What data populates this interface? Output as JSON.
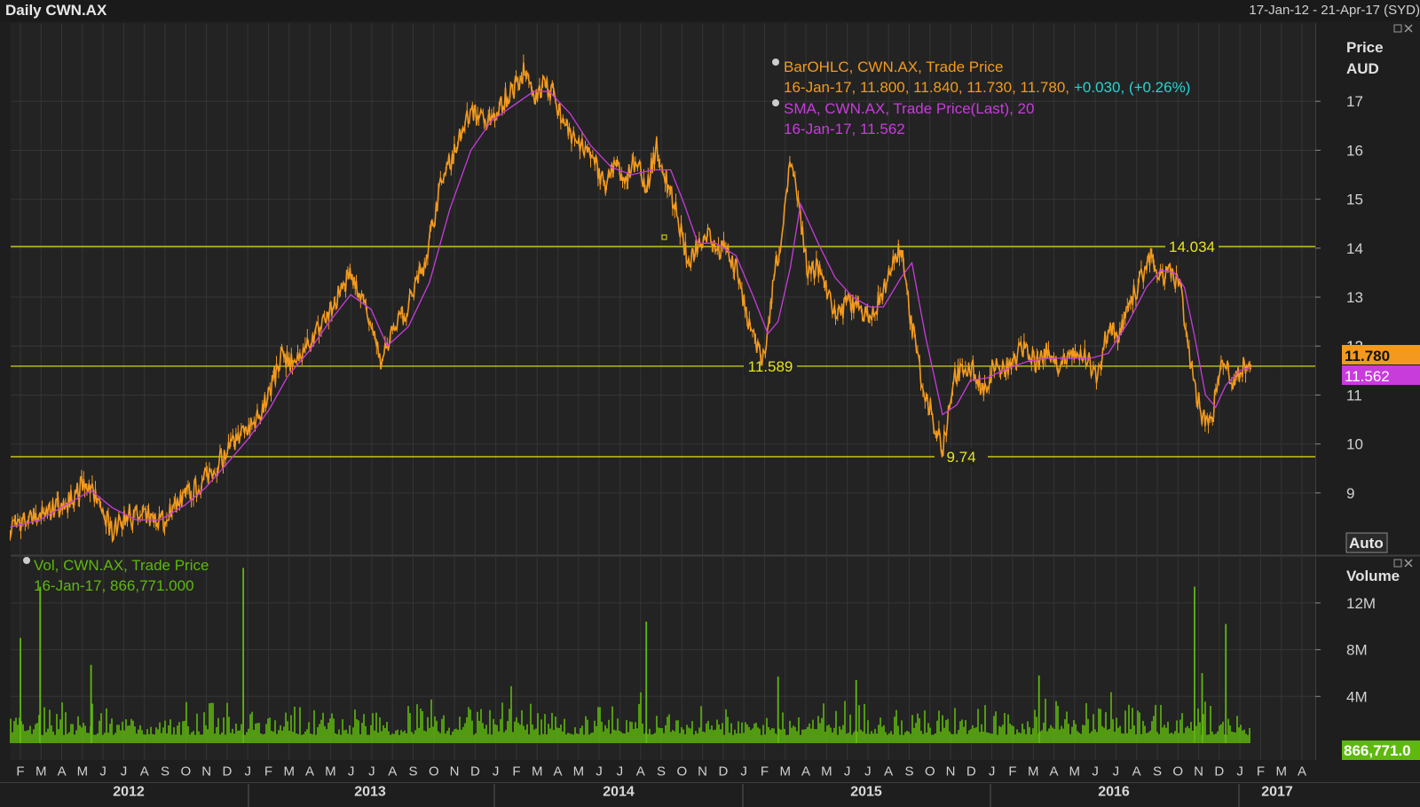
{
  "header": {
    "title": "Daily CWN.AX",
    "date_range": "17-Jan-12 - 21-Apr-17 (SYD)"
  },
  "colors": {
    "background": "#232323",
    "grid": "#353535",
    "price_bars": "#f39a1e",
    "sma": "#c83cdc",
    "volume": "#5fb80e",
    "hlines": "#e6e61a",
    "change_text": "#27d3d3"
  },
  "legend": {
    "price_line1": "BarOHLC, CWN.AX, Trade Price",
    "price_line2": "16-Jan-17, 11.800, 11.840, 11.730, 11.780,",
    "price_change": "+0.030, (+0.26%)",
    "sma_line1": "SMA, CWN.AX, Trade Price(Last),  20",
    "sma_line2": "16-Jan-17, 11.562",
    "vol_line1": "Vol, CWN.AX, Trade Price",
    "vol_line2": "16-Jan-17, 866,771.000"
  },
  "price_axis": {
    "title1": "Price",
    "title2": "AUD",
    "auto_label": "Auto",
    "last_price_label": "11.780",
    "sma_label": "11.562"
  },
  "volume_axis": {
    "title": "Volume",
    "last_volume_label": "866,771.0"
  },
  "chart_data": {
    "type": "line",
    "title": "Daily CWN.AX",
    "x_range": [
      "2012-01-17",
      "2017-04-21"
    ],
    "price_axis": {
      "ylim": [
        8,
        17.8
      ],
      "ticks": [
        "9",
        "10",
        "11",
        "12",
        "13",
        "14",
        "15",
        "16",
        "17"
      ]
    },
    "volume_axis": {
      "ylim": [
        0,
        15000000
      ],
      "tick_values": [
        4000000,
        8000000,
        12000000
      ],
      "tick_labels": [
        "4M",
        "8M",
        "12M"
      ]
    },
    "horizontal_lines": [
      {
        "value": 14.034,
        "label": "14.034"
      },
      {
        "value": 11.589,
        "label": "11.589"
      },
      {
        "value": 9.74,
        "label": "9.74"
      }
    ],
    "month_labels": [
      "F",
      "M",
      "A",
      "M",
      "J",
      "J",
      "A",
      "S",
      "O",
      "N",
      "D",
      "J",
      "F",
      "M",
      "A",
      "M",
      "J",
      "J",
      "A",
      "S",
      "O",
      "N",
      "D",
      "J",
      "F",
      "M",
      "A",
      "M",
      "J",
      "J",
      "A",
      "S",
      "O",
      "N",
      "D",
      "J",
      "F",
      "M",
      "A",
      "M",
      "J",
      "J",
      "A",
      "S",
      "O",
      "N",
      "D",
      "J",
      "F",
      "M",
      "A",
      "M",
      "J",
      "J",
      "A",
      "S",
      "O",
      "N",
      "D",
      "J",
      "F",
      "M",
      "A"
    ],
    "year_labels": [
      "2012",
      "2013",
      "2014",
      "2015",
      "2016",
      "2017"
    ],
    "series": [
      {
        "name": "BarOHLC, CWN.AX, Trade Price",
        "points": [
          [
            "2012-01-17",
            8.3
          ],
          [
            "2012-02-20",
            8.5
          ],
          [
            "2012-03-20",
            8.65
          ],
          [
            "2012-04-15",
            8.85
          ],
          [
            "2012-05-05",
            9.2
          ],
          [
            "2012-05-25",
            8.9
          ],
          [
            "2012-06-15",
            8.2
          ],
          [
            "2012-07-10",
            8.55
          ],
          [
            "2012-08-05",
            8.45
          ],
          [
            "2012-08-25",
            8.4
          ],
          [
            "2012-09-20",
            8.85
          ],
          [
            "2012-10-20",
            9.15
          ],
          [
            "2012-11-20",
            9.65
          ],
          [
            "2012-12-20",
            10.15
          ],
          [
            "2013-01-10",
            10.4
          ],
          [
            "2013-02-01",
            11.05
          ],
          [
            "2013-02-20",
            11.8
          ],
          [
            "2013-03-10",
            11.65
          ],
          [
            "2013-04-10",
            12.25
          ],
          [
            "2013-05-10",
            12.9
          ],
          [
            "2013-06-01",
            13.55
          ],
          [
            "2013-06-15",
            13.0
          ],
          [
            "2013-07-01",
            12.35
          ],
          [
            "2013-07-15",
            11.7
          ],
          [
            "2013-08-05",
            12.4
          ],
          [
            "2013-08-25",
            12.8
          ],
          [
            "2013-09-20",
            13.8
          ],
          [
            "2013-10-10",
            15.2
          ],
          [
            "2013-11-01",
            16.0
          ],
          [
            "2013-11-25",
            16.8
          ],
          [
            "2013-12-20",
            16.5
          ],
          [
            "2014-01-10",
            17.0
          ],
          [
            "2014-01-25",
            17.2
          ],
          [
            "2014-02-10",
            17.6
          ],
          [
            "2014-02-25",
            17.1
          ],
          [
            "2014-03-10",
            17.3
          ],
          [
            "2014-03-25",
            17.2
          ],
          [
            "2014-04-10",
            16.6
          ],
          [
            "2014-04-25",
            16.3
          ],
          [
            "2014-05-10",
            16.0
          ],
          [
            "2014-05-25",
            15.8
          ],
          [
            "2014-06-10",
            15.3
          ],
          [
            "2014-06-25",
            15.7
          ],
          [
            "2014-07-10",
            15.4
          ],
          [
            "2014-07-25",
            15.8
          ],
          [
            "2014-08-10",
            15.2
          ],
          [
            "2014-08-25",
            16.1
          ],
          [
            "2014-09-10",
            15.3
          ],
          [
            "2014-09-25",
            14.7
          ],
          [
            "2014-10-10",
            13.7
          ],
          [
            "2014-10-25",
            14.1
          ],
          [
            "2014-11-10",
            14.3
          ],
          [
            "2014-11-25",
            14.0
          ],
          [
            "2014-12-10",
            13.9
          ],
          [
            "2014-12-25",
            13.4
          ],
          [
            "2015-01-10",
            12.3
          ],
          [
            "2015-01-25",
            11.75
          ],
          [
            "2015-02-05",
            12.2
          ],
          [
            "2015-02-15",
            13.6
          ],
          [
            "2015-02-25",
            14.0
          ],
          [
            "2015-03-10",
            15.8
          ],
          [
            "2015-03-20",
            15.1
          ],
          [
            "2015-04-05",
            13.5
          ],
          [
            "2015-04-20",
            13.6
          ],
          [
            "2015-05-05",
            13.0
          ],
          [
            "2015-05-20",
            12.6
          ],
          [
            "2015-06-05",
            12.9
          ],
          [
            "2015-06-20",
            12.8
          ],
          [
            "2015-07-05",
            12.5
          ],
          [
            "2015-07-20",
            13.0
          ],
          [
            "2015-08-05",
            13.6
          ],
          [
            "2015-08-20",
            14.0
          ],
          [
            "2015-09-05",
            12.4
          ],
          [
            "2015-09-20",
            11.3
          ],
          [
            "2015-10-05",
            10.6
          ],
          [
            "2015-10-20",
            9.85
          ],
          [
            "2015-11-05",
            11.3
          ],
          [
            "2015-11-20",
            11.6
          ],
          [
            "2015-12-05",
            11.5
          ],
          [
            "2015-12-20",
            11.0
          ],
          [
            "2016-01-05",
            11.7
          ],
          [
            "2016-01-20",
            11.5
          ],
          [
            "2016-02-05",
            11.8
          ],
          [
            "2016-02-20",
            12.0
          ],
          [
            "2016-03-05",
            11.6
          ],
          [
            "2016-03-20",
            11.9
          ],
          [
            "2016-04-05",
            11.6
          ],
          [
            "2016-04-20",
            11.8
          ],
          [
            "2016-05-05",
            11.9
          ],
          [
            "2016-05-20",
            11.7
          ],
          [
            "2016-06-05",
            11.4
          ],
          [
            "2016-06-20",
            12.4
          ],
          [
            "2016-07-05",
            12.2
          ],
          [
            "2016-07-20",
            12.8
          ],
          [
            "2016-08-05",
            13.3
          ],
          [
            "2016-08-20",
            13.85
          ],
          [
            "2016-09-05",
            13.4
          ],
          [
            "2016-09-20",
            13.5
          ],
          [
            "2016-10-05",
            13.1
          ],
          [
            "2016-10-20",
            11.6
          ],
          [
            "2016-11-05",
            10.5
          ],
          [
            "2016-11-20",
            10.6
          ],
          [
            "2016-12-05",
            11.8
          ],
          [
            "2016-12-20",
            11.3
          ],
          [
            "2017-01-05",
            11.6
          ],
          [
            "2017-01-16",
            11.78
          ]
        ]
      },
      {
        "name": "SMA, CWN.AX, Trade Price(Last),  20",
        "points": [
          [
            "2012-01-17",
            8.3
          ],
          [
            "2012-03-01",
            8.45
          ],
          [
            "2012-04-01",
            8.7
          ],
          [
            "2012-05-15",
            9.05
          ],
          [
            "2012-06-15",
            8.7
          ],
          [
            "2012-07-20",
            8.45
          ],
          [
            "2012-08-25",
            8.45
          ],
          [
            "2012-09-30",
            8.75
          ],
          [
            "2012-10-30",
            9.1
          ],
          [
            "2012-12-01",
            9.6
          ],
          [
            "2013-01-01",
            10.1
          ],
          [
            "2013-02-01",
            10.7
          ],
          [
            "2013-03-01",
            11.4
          ],
          [
            "2013-04-01",
            11.9
          ],
          [
            "2013-05-01",
            12.5
          ],
          [
            "2013-06-01",
            13.05
          ],
          [
            "2013-07-01",
            12.75
          ],
          [
            "2013-07-25",
            12.0
          ],
          [
            "2013-08-25",
            12.4
          ],
          [
            "2013-09-25",
            13.3
          ],
          [
            "2013-10-25",
            14.8
          ],
          [
            "2013-11-25",
            16.0
          ],
          [
            "2013-12-25",
            16.6
          ],
          [
            "2014-01-25",
            16.9
          ],
          [
            "2014-02-25",
            17.2
          ],
          [
            "2014-03-20",
            17.2
          ],
          [
            "2014-04-20",
            16.75
          ],
          [
            "2014-05-20",
            16.1
          ],
          [
            "2014-06-20",
            15.65
          ],
          [
            "2014-07-20",
            15.5
          ],
          [
            "2014-08-20",
            15.6
          ],
          [
            "2014-09-15",
            15.6
          ],
          [
            "2014-10-05",
            14.9
          ],
          [
            "2014-10-25",
            14.1
          ],
          [
            "2014-11-20",
            14.1
          ],
          [
            "2014-12-20",
            13.85
          ],
          [
            "2015-01-15",
            13.0
          ],
          [
            "2015-02-05",
            12.25
          ],
          [
            "2015-02-20",
            12.5
          ],
          [
            "2015-03-10",
            13.6
          ],
          [
            "2015-03-25",
            14.9
          ],
          [
            "2015-04-20",
            14.1
          ],
          [
            "2015-05-15",
            13.4
          ],
          [
            "2015-06-10",
            13.0
          ],
          [
            "2015-07-05",
            12.8
          ],
          [
            "2015-07-25",
            12.8
          ],
          [
            "2015-08-20",
            13.4
          ],
          [
            "2015-09-05",
            13.7
          ],
          [
            "2015-09-25",
            12.2
          ],
          [
            "2015-10-20",
            10.6
          ],
          [
            "2015-11-10",
            10.8
          ],
          [
            "2015-11-30",
            11.3
          ],
          [
            "2015-12-25",
            11.35
          ],
          [
            "2016-01-25",
            11.55
          ],
          [
            "2016-02-25",
            11.7
          ],
          [
            "2016-03-25",
            11.75
          ],
          [
            "2016-04-25",
            11.75
          ],
          [
            "2016-05-25",
            11.75
          ],
          [
            "2016-06-20",
            11.85
          ],
          [
            "2016-07-20",
            12.5
          ],
          [
            "2016-08-15",
            13.2
          ],
          [
            "2016-09-05",
            13.55
          ],
          [
            "2016-09-25",
            13.5
          ],
          [
            "2016-10-10",
            13.2
          ],
          [
            "2016-10-25",
            12.2
          ],
          [
            "2016-11-10",
            11.0
          ],
          [
            "2016-11-25",
            10.75
          ],
          [
            "2016-12-10",
            11.2
          ],
          [
            "2016-12-30",
            11.5
          ],
          [
            "2017-01-16",
            11.562
          ]
        ]
      }
    ],
    "volume_spikes": [
      [
        "2012-03-01",
        13400000
      ],
      [
        "2012-02-01",
        9000000
      ],
      [
        "2012-05-15",
        6700000
      ],
      [
        "2012-12-25",
        15000000
      ],
      [
        "2014-08-10",
        10400000
      ],
      [
        "2016-10-25",
        13400000
      ],
      [
        "2016-12-10",
        10200000
      ],
      [
        "2015-02-20",
        5700000
      ],
      [
        "2015-06-15",
        5400000
      ],
      [
        "2016-03-10",
        5800000
      ],
      [
        "2016-11-05",
        6000000
      ]
    ]
  }
}
